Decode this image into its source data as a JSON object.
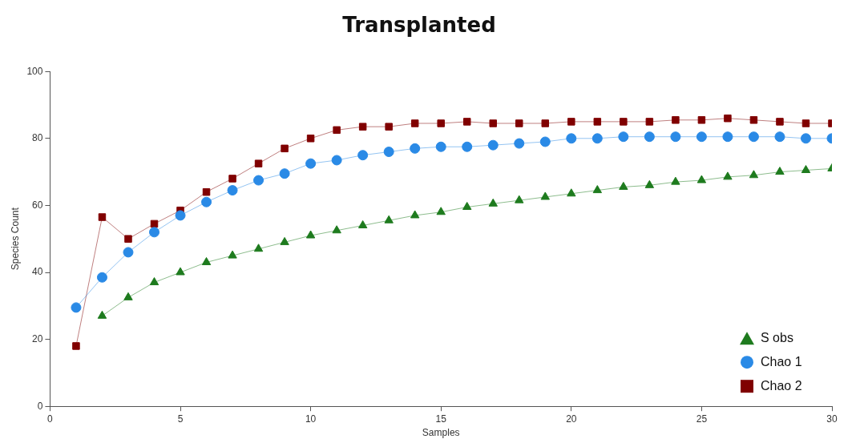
{
  "chart_data": {
    "type": "line",
    "title": "Transplanted",
    "xlabel": "Samples",
    "ylabel": "Species Count",
    "x": [
      1,
      2,
      3,
      4,
      5,
      6,
      7,
      8,
      9,
      10,
      11,
      12,
      13,
      14,
      15,
      16,
      17,
      18,
      19,
      20,
      21,
      22,
      23,
      24,
      25,
      26,
      27,
      28,
      29,
      30
    ],
    "xlim": [
      0,
      30
    ],
    "xticks": [
      0,
      5,
      10,
      15,
      20,
      25,
      30
    ],
    "ylim": [
      0,
      100
    ],
    "yticks": [
      0,
      20,
      40,
      60,
      80,
      100
    ],
    "grid": false,
    "legend": "bottom right",
    "series": [
      {
        "name": "S obs",
        "color": "#1e7b1e",
        "marker": "triangle",
        "values": [
          null,
          27,
          32.5,
          37,
          40,
          43,
          45,
          47,
          49,
          51,
          52.5,
          54,
          55.5,
          57,
          58,
          59.5,
          60.5,
          61.5,
          62.5,
          63.5,
          64.5,
          65.5,
          66,
          67,
          67.5,
          68.5,
          69,
          70,
          70.5,
          71
        ]
      },
      {
        "name": "Chao 1",
        "color": "#2a8ae6",
        "marker": "circle",
        "values": [
          29.5,
          38.5,
          46,
          52,
          57,
          61,
          64.5,
          67.5,
          69.5,
          72.5,
          73.5,
          75,
          76,
          77,
          77.5,
          77.5,
          78,
          78.5,
          79,
          80,
          80,
          80.5,
          80.5,
          80.5,
          80.5,
          80.5,
          80.5,
          80.5,
          80,
          80
        ]
      },
      {
        "name": "Chao 2",
        "color": "#800000",
        "marker": "square",
        "values": [
          18,
          56.5,
          50,
          54.5,
          58.5,
          64,
          68,
          72.5,
          77,
          80,
          82.5,
          83.5,
          83.5,
          84.5,
          84.5,
          85,
          84.5,
          84.5,
          84.5,
          85,
          85,
          85,
          85,
          85.5,
          85.5,
          86,
          85.5,
          85,
          84.5,
          84.5
        ]
      }
    ]
  }
}
